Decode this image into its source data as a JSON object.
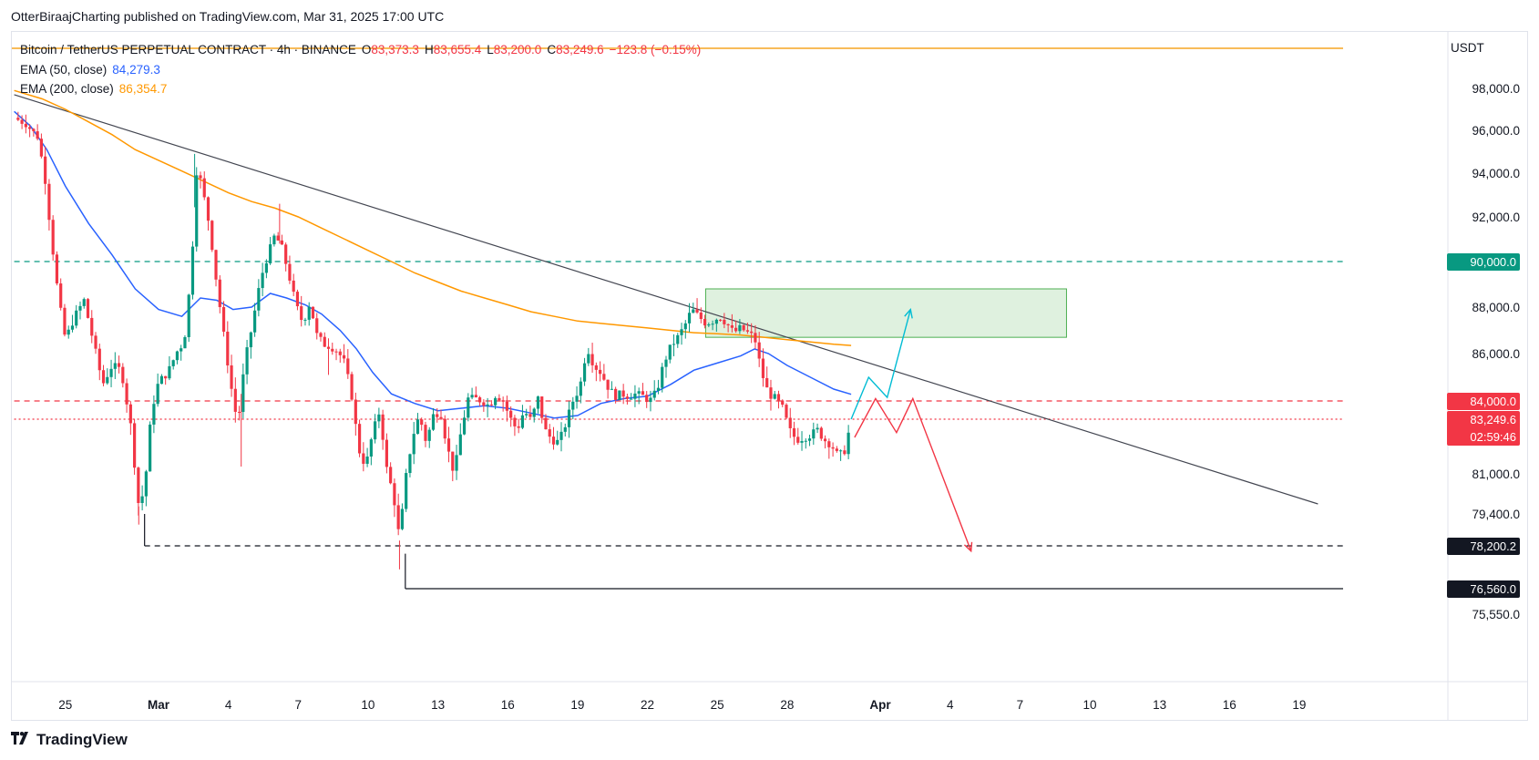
{
  "publisher": "OtterBiraajCharting published on TradingView.com, Mar 31, 2025 17:00 UTC",
  "brand": "TradingView",
  "brand_logo_icon": "tradingview-logo-icon",
  "legend": {
    "title": "Bitcoin / TetherUS PERPETUAL CONTRACT · 4h · BINANCE",
    "o_label": "O",
    "o_value": "83,373.3",
    "h_label": "H",
    "h_value": "83,655.4",
    "l_label": "L",
    "l_value": "83,200.0",
    "c_label": "C",
    "c_value": "83,249.6",
    "change": "−123.8 (−0.15%)",
    "ema50_label": "EMA (50, close)",
    "ema50_value": "84,279.3",
    "ema200_label": "EMA (200, close)",
    "ema200_value": "86,354.7"
  },
  "price_scale": {
    "unit": "USDT",
    "tags": [
      {
        "price": 90000,
        "label": "90,000.0",
        "color": "#089981"
      },
      {
        "price": 84000,
        "label": "84,000.0",
        "color": "#f23645"
      },
      {
        "price": 83249.6,
        "label": "83,249.6",
        "sublabel": "02:59:46",
        "color": "#f23645"
      },
      {
        "price": 78200.2,
        "label": "78,200.2",
        "color": "#131722"
      },
      {
        "price": 76560,
        "label": "76,560.0",
        "color": "#131722"
      }
    ]
  },
  "chart_data": {
    "type": "candlestick",
    "symbol": "BTCUSDT.P",
    "timeframe": "4h",
    "y_ticks": [
      {
        "value": 98000,
        "label": "98,000.0"
      },
      {
        "value": 96000,
        "label": "96,000.0"
      },
      {
        "value": 94000,
        "label": "94,000.0"
      },
      {
        "value": 92000,
        "label": "92,000.0"
      },
      {
        "value": 88000,
        "label": "88,000.0"
      },
      {
        "value": 86000,
        "label": "86,000.0"
      },
      {
        "value": 81000,
        "label": "81,000.0"
      },
      {
        "value": 79400,
        "label": "79,400.0"
      },
      {
        "value": 75550,
        "label": "75,550.0"
      }
    ],
    "x_ticks": [
      "25",
      "Mar",
      "4",
      "7",
      "10",
      "13",
      "16",
      "19",
      "22",
      "25",
      "28",
      "Apr",
      "4",
      "7",
      "10",
      "13",
      "16",
      "19"
    ],
    "x_tick_days": [
      -4,
      0,
      3,
      6,
      9,
      12,
      15,
      18,
      21,
      24,
      27,
      31,
      34,
      37,
      40,
      43,
      46,
      49
    ],
    "anchors": [
      [
        -6.2,
        96600
      ],
      [
        -5.7,
        96300
      ],
      [
        -5.2,
        95700
      ],
      [
        -4.9,
        94000
      ],
      [
        -4.6,
        91000
      ],
      [
        -4.3,
        88400
      ],
      [
        -4.0,
        86600
      ],
      [
        -3.6,
        87600
      ],
      [
        -3.2,
        88300
      ],
      [
        -2.8,
        86500
      ],
      [
        -2.4,
        84700
      ],
      [
        -2.0,
        85500
      ],
      [
        -1.6,
        85300
      ],
      [
        -1.2,
        83000
      ],
      [
        -0.85,
        79700
      ],
      [
        -0.6,
        80400
      ],
      [
        -0.3,
        83600
      ],
      [
        0.0,
        84800
      ],
      [
        0.4,
        85200
      ],
      [
        0.8,
        86100
      ],
      [
        1.1,
        86500
      ],
      [
        1.4,
        89500
      ],
      [
        1.65,
        94400
      ],
      [
        1.9,
        93200
      ],
      [
        2.2,
        91500
      ],
      [
        2.5,
        89000
      ],
      [
        2.8,
        86800
      ],
      [
        3.1,
        84700
      ],
      [
        3.4,
        83000
      ],
      [
        3.7,
        85600
      ],
      [
        4.0,
        87100
      ],
      [
        4.4,
        89300
      ],
      [
        4.7,
        90300
      ],
      [
        5.0,
        91200
      ],
      [
        5.3,
        90600
      ],
      [
        5.6,
        89400
      ],
      [
        5.9,
        88100
      ],
      [
        6.2,
        87300
      ],
      [
        6.5,
        88200
      ],
      [
        6.8,
        86800
      ],
      [
        7.1,
        86400
      ],
      [
        7.4,
        86300
      ],
      [
        7.7,
        86100
      ],
      [
        8.0,
        85600
      ],
      [
        8.3,
        84200
      ],
      [
        8.6,
        82000
      ],
      [
        8.9,
        81300
      ],
      [
        9.2,
        82700
      ],
      [
        9.5,
        83600
      ],
      [
        9.8,
        81200
      ],
      [
        10.1,
        80100
      ],
      [
        10.35,
        78400
      ],
      [
        10.6,
        80700
      ],
      [
        10.9,
        82500
      ],
      [
        11.2,
        83400
      ],
      [
        11.5,
        82300
      ],
      [
        11.8,
        83400
      ],
      [
        12.1,
        83600
      ],
      [
        12.4,
        82100
      ],
      [
        12.7,
        81000
      ],
      [
        13.0,
        82800
      ],
      [
        13.3,
        84100
      ],
      [
        13.6,
        84100
      ],
      [
        13.9,
        84000
      ],
      [
        14.2,
        83800
      ],
      [
        14.5,
        84300
      ],
      [
        14.8,
        84000
      ],
      [
        15.1,
        83300
      ],
      [
        15.4,
        82800
      ],
      [
        15.7,
        83600
      ],
      [
        16.0,
        83200
      ],
      [
        16.3,
        84100
      ],
      [
        16.6,
        82800
      ],
      [
        16.9,
        82400
      ],
      [
        17.2,
        82300
      ],
      [
        17.5,
        83100
      ],
      [
        17.8,
        84000
      ],
      [
        18.1,
        84600
      ],
      [
        18.4,
        86300
      ],
      [
        18.7,
        85500
      ],
      [
        19.0,
        85200
      ],
      [
        19.3,
        84600
      ],
      [
        19.6,
        84200
      ],
      [
        19.9,
        84300
      ],
      [
        20.2,
        84200
      ],
      [
        20.5,
        84300
      ],
      [
        20.8,
        84200
      ],
      [
        21.1,
        84000
      ],
      [
        21.4,
        84400
      ],
      [
        21.7,
        85600
      ],
      [
        22.0,
        86300
      ],
      [
        22.3,
        86700
      ],
      [
        22.6,
        87200
      ],
      [
        22.9,
        87900
      ],
      [
        23.2,
        87600
      ],
      [
        23.5,
        87300
      ],
      [
        23.8,
        87400
      ],
      [
        24.1,
        87600
      ],
      [
        24.4,
        87300
      ],
      [
        24.7,
        86900
      ],
      [
        25.0,
        87100
      ],
      [
        25.3,
        86900
      ],
      [
        25.6,
        86700
      ],
      [
        25.9,
        85200
      ],
      [
        26.2,
        84300
      ],
      [
        26.5,
        84100
      ],
      [
        26.8,
        83700
      ],
      [
        27.1,
        82800
      ],
      [
        27.4,
        82400
      ],
      [
        27.7,
        82500
      ],
      [
        28.0,
        82600
      ],
      [
        28.3,
        82800
      ],
      [
        28.6,
        82400
      ],
      [
        28.9,
        82200
      ],
      [
        29.2,
        81700
      ],
      [
        29.5,
        82000
      ],
      [
        29.75,
        83250
      ]
    ],
    "ema50": [
      [
        -6.2,
        96900
      ],
      [
        -5.5,
        96200
      ],
      [
        -4.8,
        95100
      ],
      [
        -4.0,
        93400
      ],
      [
        -3.0,
        91700
      ],
      [
        -2.0,
        90300
      ],
      [
        -1.0,
        88800
      ],
      [
        0.0,
        87900
      ],
      [
        1.0,
        87600
      ],
      [
        1.8,
        88400
      ],
      [
        2.5,
        88300
      ],
      [
        3.2,
        87900
      ],
      [
        4.0,
        88000
      ],
      [
        4.8,
        88600
      ],
      [
        5.5,
        88400
      ],
      [
        6.3,
        88100
      ],
      [
        7.0,
        87700
      ],
      [
        7.8,
        87000
      ],
      [
        8.5,
        86200
      ],
      [
        9.2,
        85200
      ],
      [
        10.0,
        84300
      ],
      [
        11.0,
        83900
      ],
      [
        12.0,
        83600
      ],
      [
        13.0,
        83700
      ],
      [
        14.0,
        83800
      ],
      [
        15.0,
        83700
      ],
      [
        16.0,
        83500
      ],
      [
        17.0,
        83300
      ],
      [
        18.0,
        83400
      ],
      [
        19.0,
        83900
      ],
      [
        20.0,
        84100
      ],
      [
        21.0,
        84200
      ],
      [
        22.0,
        84700
      ],
      [
        23.0,
        85300
      ],
      [
        24.0,
        85600
      ],
      [
        25.0,
        85900
      ],
      [
        25.6,
        86200
      ],
      [
        26.2,
        86000
      ],
      [
        27.0,
        85500
      ],
      [
        28.0,
        85000
      ],
      [
        29.0,
        84500
      ],
      [
        29.75,
        84280
      ]
    ],
    "ema200": [
      [
        -6.2,
        97900
      ],
      [
        -5.0,
        97500
      ],
      [
        -4.0,
        97000
      ],
      [
        -3.0,
        96400
      ],
      [
        -2.0,
        95800
      ],
      [
        -1.0,
        95100
      ],
      [
        0.0,
        94600
      ],
      [
        1.0,
        94100
      ],
      [
        2.0,
        93600
      ],
      [
        3.0,
        93100
      ],
      [
        4.0,
        92700
      ],
      [
        5.0,
        92400
      ],
      [
        6.0,
        92000
      ],
      [
        7.0,
        91500
      ],
      [
        8.0,
        91000
      ],
      [
        9.0,
        90500
      ],
      [
        10.0,
        90000
      ],
      [
        11.0,
        89500
      ],
      [
        12.0,
        89100
      ],
      [
        13.0,
        88700
      ],
      [
        14.0,
        88400
      ],
      [
        15.0,
        88100
      ],
      [
        16.0,
        87800
      ],
      [
        17.0,
        87600
      ],
      [
        18.0,
        87400
      ],
      [
        19.0,
        87300
      ],
      [
        20.0,
        87200
      ],
      [
        21.0,
        87100
      ],
      [
        22.0,
        87000
      ],
      [
        23.0,
        86900
      ],
      [
        24.0,
        86850
      ],
      [
        25.0,
        86800
      ],
      [
        26.0,
        86700
      ],
      [
        27.0,
        86600
      ],
      [
        28.0,
        86500
      ],
      [
        29.0,
        86400
      ],
      [
        29.75,
        86350
      ]
    ],
    "trendline": [
      [
        -6.2,
        97700
      ],
      [
        49.8,
        79800
      ]
    ],
    "resistance_zone": {
      "x1": 23.5,
      "x2": 39.0,
      "y1": 86700,
      "y2": 88800
    },
    "horizontal_levels": [
      {
        "price": 90000,
        "color": "#089981",
        "style": "dashed",
        "from": -6.2
      },
      {
        "price": 84000,
        "color": "#f23645",
        "style": "dashed",
        "from": -6.2
      },
      {
        "price": 83249.6,
        "color": "#f23645",
        "style": "dotted",
        "from": -6.2
      },
      {
        "price": 78200.2,
        "color": "#131722",
        "style": "dashed",
        "from": -0.6
      },
      {
        "price": 76560,
        "color": "#131722",
        "style": "solid",
        "from": 10.6
      }
    ],
    "top_orange_level": 99700,
    "bullish_projection": [
      [
        29.75,
        83250
      ],
      [
        30.5,
        85000
      ],
      [
        31.3,
        84150
      ],
      [
        32.3,
        87900
      ]
    ],
    "bearish_projection": [
      [
        29.9,
        82500
      ],
      [
        30.8,
        84100
      ],
      [
        31.7,
        82700
      ],
      [
        32.4,
        84100
      ],
      [
        34.9,
        78000
      ]
    ]
  }
}
